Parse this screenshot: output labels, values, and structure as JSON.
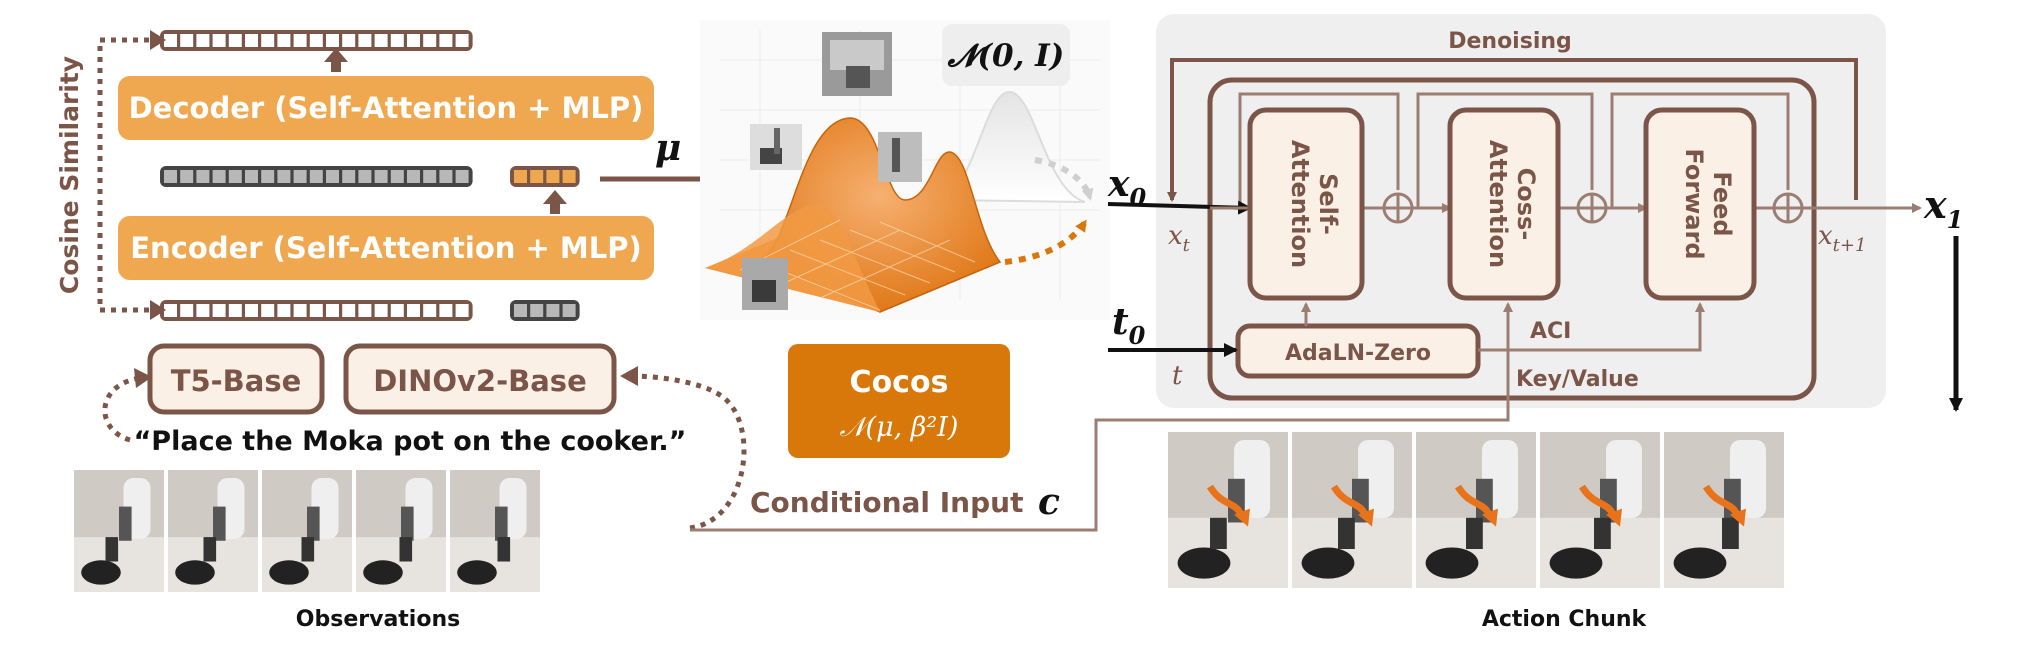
{
  "encoder_panel": {
    "decoder_label": "Decoder (Self-Attention + MLP)",
    "encoder_label": "Encoder (Self-Attention + MLP)",
    "cosine_label": "Cosine Similarity",
    "mu_label": "μ",
    "t5_label": "T5-Base",
    "dino_label": "DINOv2-Base",
    "instruction": "“Place the Moka pot on the cooker.”",
    "observations_label": "Observations"
  },
  "distribution_panel": {
    "normal_label": "𝓝(0, I)",
    "cocos_title": "Cocos",
    "cocos_formula": "𝒩(μ, β²I)",
    "conditional_label": "Conditional Input",
    "conditional_symbol": "c"
  },
  "denoiser_panel": {
    "denoising_label": "Denoising",
    "x0_label": "x",
    "x0_sub": "0",
    "t0_label": "t",
    "t0_sub": "0",
    "xt_label": "x",
    "xt_sub": "t",
    "t_label": "t",
    "self_attention": "Self-\nAttention",
    "cross_attention": "Coss-\nAttention",
    "feed_forward": "Feed\nForward",
    "adaln": "AdaLN-Zero",
    "aci": "ACI",
    "keyvalue": "Key/Value",
    "xt1_label": "x",
    "xt1_sub": "t+1",
    "x1_label": "x",
    "x1_sub": "1",
    "action_chunk_label": "Action Chunk"
  },
  "colors": {
    "brown": "#7a5548",
    "orange": "#f0a850",
    "dark_orange": "#d9780a",
    "cream": "#fbf0e6",
    "gray_panel": "#efefef"
  }
}
